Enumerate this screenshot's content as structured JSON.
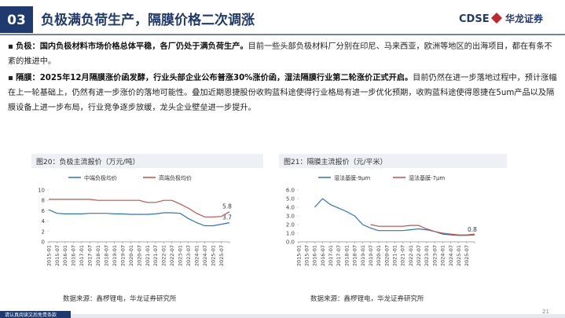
{
  "header": {
    "number": "03",
    "title": "负极满负荷生产，隔膜价格二次调涨",
    "logo": "CDSE",
    "logo_cn": "华龙证券"
  },
  "paragraphs": [
    {
      "bold": "负极：国内负极材料市场价格总体平稳，各厂仍处于满负荷生产。",
      "text": "目前一些头部负极材料厂分别在印尼、马来西亚，欧洲等地区的出海项目，都在有条不紊的推进中。"
    },
    {
      "bold": "隔膜：2025年12月隔膜涨价函发酵，行业头部企业公布普涨30%涨价函，湿法隔膜行业第二轮涨价正式开启。",
      "text": "目前仍然在进一步落地过程中，预计涨幅在上一轮基础上，仍然有进一步涨价的落地可能性。叠加近期恩捷股份收购蓝科途使得行业格局有进一步优化预期，收购蓝科途使得恩捷在5um产品以及隔膜设备上进一步布局，行业竞争逐步放缓，龙头企业壁垒进一步提升。"
    }
  ],
  "chart_data": [
    {
      "type": "line",
      "title": "图20：负极主流报价（万元/吨）",
      "source": "数据来源：鑫椤锂电，华龙证券研究所",
      "categories": [
        "2015-01",
        "2015-07",
        "2016-01",
        "2016-07",
        "2017-01",
        "2017-07",
        "2018-01",
        "2018-07",
        "2019-01",
        "2019-07",
        "2020-01",
        "2020-07",
        "2021-01",
        "2021-07",
        "2022-01",
        "2022-07",
        "2023-01",
        "2023-07",
        "2024-01",
        "2024-07",
        "2025-01",
        "2025-07",
        null
      ],
      "series": [
        {
          "name": "中端负极均价",
          "color": "#2e75b6",
          "end_label": true,
          "values": [
            6.2,
            5.5,
            5.4,
            5.4,
            5.4,
            5.5,
            5.5,
            5.5,
            5.4,
            5.4,
            5.3,
            5.3,
            5.3,
            5.4,
            5.6,
            5.6,
            5.5,
            4.5,
            3.7,
            3.1,
            3.1,
            3.4,
            3.7
          ]
        },
        {
          "name": "高端负极均价",
          "color": "#c0504d",
          "end_label": true,
          "values": [
            8.2,
            8.2,
            8.2,
            8.2,
            8.2,
            8.2,
            8.0,
            8.0,
            8.0,
            8.0,
            8.0,
            8.0,
            7.6,
            7.6,
            8.0,
            8.0,
            7.3,
            6.5,
            5.5,
            4.8,
            4.8,
            4.9,
            5.8
          ]
        }
      ],
      "ylim": [
        0,
        10
      ],
      "yticks": [
        0,
        2,
        4,
        6,
        8,
        10
      ],
      "grid": false
    },
    {
      "type": "line",
      "title": "图21：隔膜主流报价（元/平米）",
      "source": "数据来源：鑫椤锂电，华龙证券研究所",
      "categories": [
        "2015-01",
        "2015-07",
        "2016-01",
        "2016-07",
        "2017-01",
        "2017-07",
        "2018-01",
        "2018-07",
        "2019-01",
        "2019-07",
        "2020-01",
        "2020-07",
        "2021-01",
        "2021-07",
        "2022-01",
        "2022-07",
        "2023-01",
        "2023-07",
        "2024-01",
        "2024-07",
        "2025-01",
        "2025-07",
        null
      ],
      "series": [
        {
          "name": "湿法基膜-9μm",
          "color": "#2e75b6",
          "end_label": true,
          "values": [
            null,
            null,
            4.0,
            5.0,
            4.3,
            3.9,
            3.5,
            3.0,
            2.0,
            1.6,
            1.3,
            1.3,
            1.3,
            1.3,
            1.4,
            1.5,
            1.4,
            1.2,
            0.9,
            0.8,
            0.75,
            0.75,
            0.8
          ]
        },
        {
          "name": "湿法基膜-7μm",
          "color": "#c0504d",
          "end_label": false,
          "values": [
            null,
            null,
            null,
            null,
            null,
            null,
            null,
            null,
            null,
            2.0,
            1.8,
            1.8,
            1.8,
            1.8,
            1.9,
            1.9,
            1.5,
            1.2,
            1.0,
            0.9,
            0.8,
            0.8,
            0.9
          ]
        }
      ],
      "ylim": [
        0,
        6
      ],
      "yticks": [
        {
          "value": 0,
          "label": "0.0"
        },
        {
          "value": 1,
          "label": "1.0"
        },
        {
          "value": 2,
          "label": "2.0"
        },
        {
          "value": 3,
          "label": "3.0"
        },
        {
          "value": 4,
          "label": "4.0"
        },
        {
          "value": 5,
          "label": "5.0"
        },
        {
          "value": 6,
          "label": "6.0"
        }
      ],
      "grid": false
    }
  ],
  "footer": {
    "disclaimer": "请认真阅读文后免责条款",
    "page": "21"
  }
}
